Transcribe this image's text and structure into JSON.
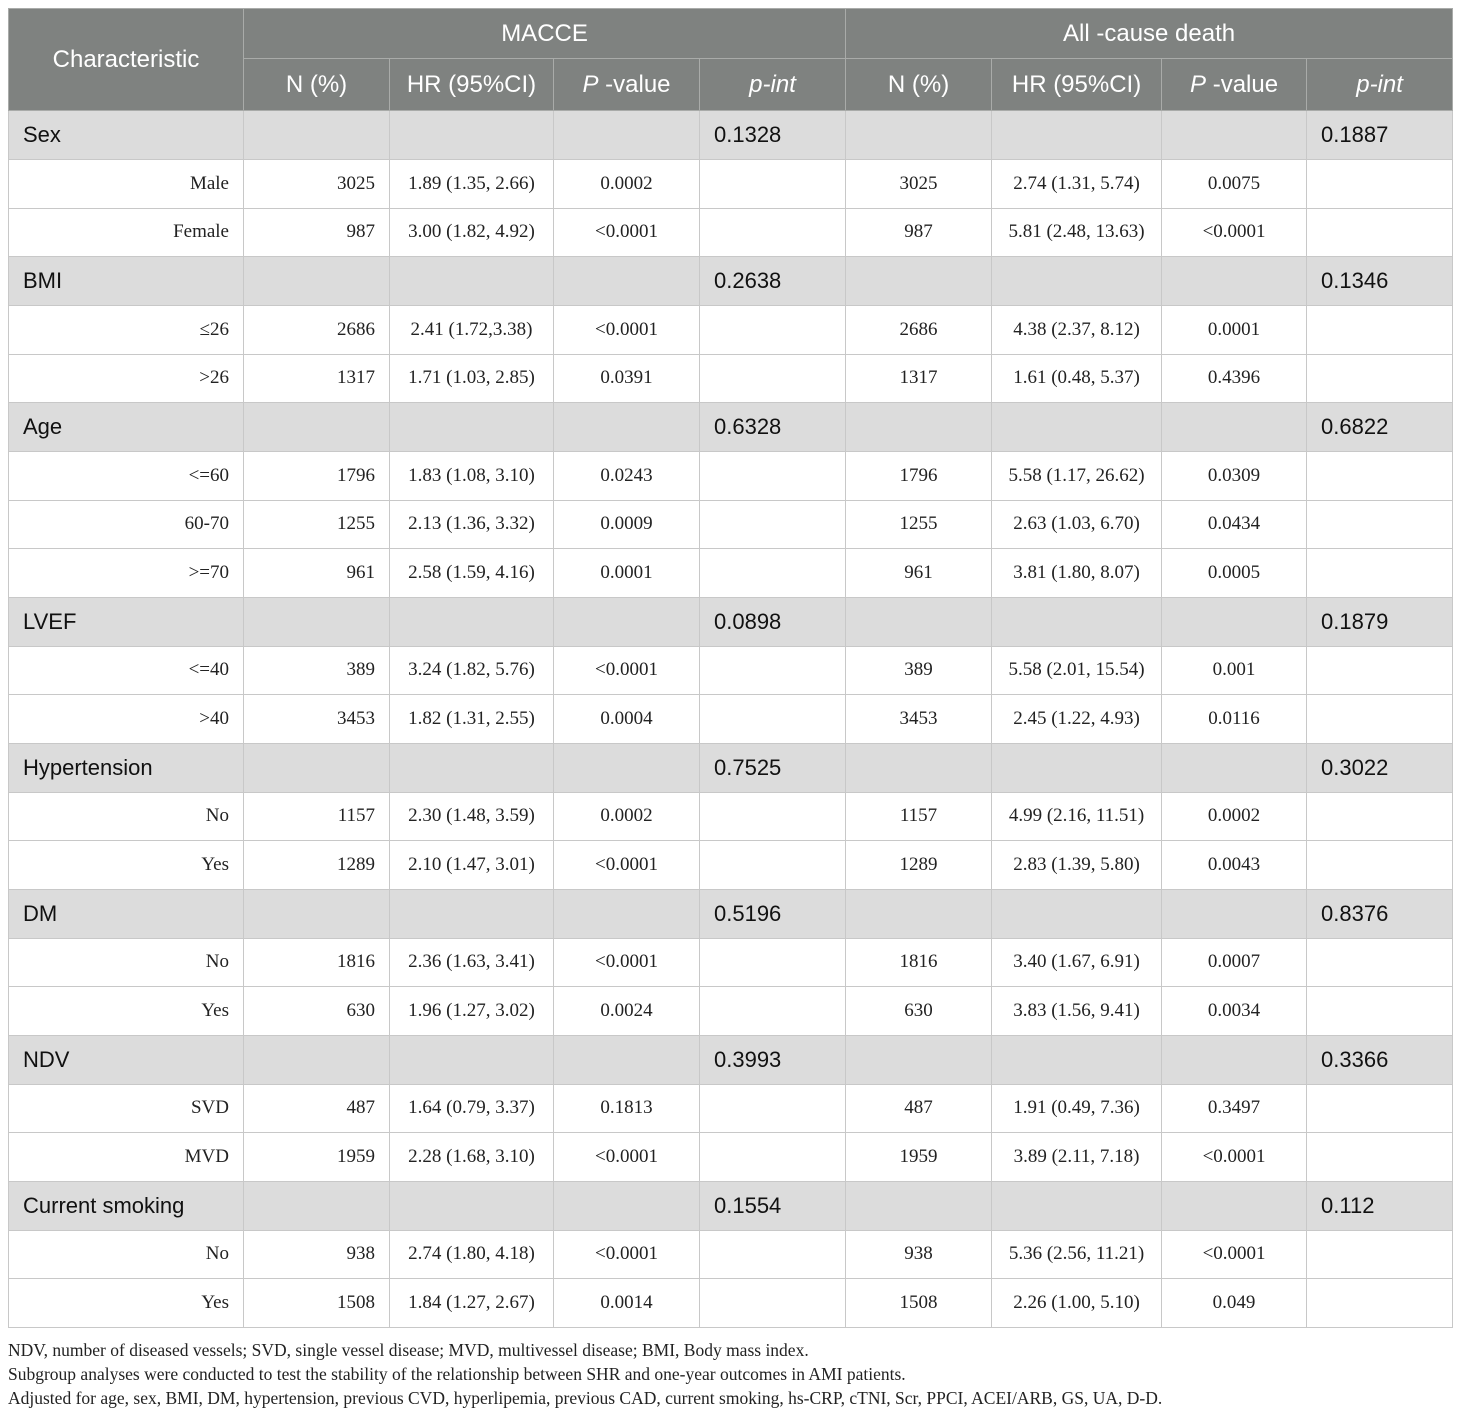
{
  "table": {
    "header": {
      "characteristic": "Characteristic",
      "group_macce": "MACCE",
      "group_death": "All -cause death",
      "n": "N (%)",
      "hr": "HR (95%CI)",
      "p_prefix": "P",
      "p_suffix": " -value",
      "pint": "p-int"
    },
    "groups": [
      {
        "label": "Sex",
        "pint_macce": "0.1328",
        "pint_death": "0.1887",
        "rows": [
          {
            "label": "Male",
            "macce": {
              "n": "3025",
              "hr": "1.89 (1.35, 2.66)",
              "p": "0.0002"
            },
            "death": {
              "n": "3025",
              "hr": "2.74 (1.31, 5.74)",
              "p": "0.0075"
            }
          },
          {
            "label": "Female",
            "macce": {
              "n": "987",
              "hr": "3.00 (1.82, 4.92)",
              "p": "<0.0001"
            },
            "death": {
              "n": "987",
              "hr": "5.81 (2.48, 13.63)",
              "p": "<0.0001"
            }
          }
        ]
      },
      {
        "label": "BMI",
        "pint_macce": "0.2638",
        "pint_death": "0.1346",
        "rows": [
          {
            "label": "≤26",
            "macce": {
              "n": "2686",
              "hr": "2.41 (1.72,3.38)",
              "p": "<0.0001"
            },
            "death": {
              "n": "2686",
              "hr": "4.38 (2.37, 8.12)",
              "p": "0.0001"
            }
          },
          {
            "label": ">26",
            "macce": {
              "n": "1317",
              "hr": "1.71 (1.03, 2.85)",
              "p": "0.0391"
            },
            "death": {
              "n": "1317",
              "hr": "1.61 (0.48, 5.37)",
              "p": "0.4396"
            }
          }
        ]
      },
      {
        "label": "Age",
        "pint_macce": "0.6328",
        "pint_death": "0.6822",
        "rows": [
          {
            "label": "<=60",
            "macce": {
              "n": "1796",
              "hr": "1.83 (1.08, 3.10)",
              "p": "0.0243"
            },
            "death": {
              "n": "1796",
              "hr": "5.58 (1.17, 26.62)",
              "p": "0.0309"
            }
          },
          {
            "label": "60-70",
            "macce": {
              "n": "1255",
              "hr": "2.13 (1.36, 3.32)",
              "p": "0.0009"
            },
            "death": {
              "n": "1255",
              "hr": "2.63 (1.03, 6.70)",
              "p": "0.0434"
            }
          },
          {
            "label": ">=70",
            "macce": {
              "n": "961",
              "hr": "2.58 (1.59, 4.16)",
              "p": "0.0001"
            },
            "death": {
              "n": "961",
              "hr": "3.81 (1.80, 8.07)",
              "p": "0.0005"
            }
          }
        ]
      },
      {
        "label": "LVEF",
        "pint_macce": "0.0898",
        "pint_death": "0.1879",
        "rows": [
          {
            "label": "<=40",
            "macce": {
              "n": "389",
              "hr": "3.24 (1.82, 5.76)",
              "p": "<0.0001"
            },
            "death": {
              "n": "389",
              "hr": "5.58 (2.01, 15.54)",
              "p": "0.001"
            }
          },
          {
            "label": ">40",
            "macce": {
              "n": "3453",
              "hr": "1.82 (1.31, 2.55)",
              "p": "0.0004"
            },
            "death": {
              "n": "3453",
              "hr": "2.45 (1.22, 4.93)",
              "p": "0.0116"
            }
          }
        ]
      },
      {
        "label": "Hypertension",
        "pint_macce": "0.7525",
        "pint_death": "0.3022",
        "rows": [
          {
            "label": "No",
            "macce": {
              "n": "1157",
              "hr": "2.30 (1.48, 3.59)",
              "p": "0.0002"
            },
            "death": {
              "n": "1157",
              "hr": "4.99 (2.16, 11.51)",
              "p": "0.0002"
            }
          },
          {
            "label": "Yes",
            "macce": {
              "n": "1289",
              "hr": "2.10 (1.47, 3.01)",
              "p": "<0.0001"
            },
            "death": {
              "n": "1289",
              "hr": "2.83 (1.39, 5.80)",
              "p": "0.0043"
            }
          }
        ]
      },
      {
        "label": "DM",
        "pint_macce": "0.5196",
        "pint_death": "0.8376",
        "rows": [
          {
            "label": "No",
            "macce": {
              "n": "1816",
              "hr": "2.36 (1.63, 3.41)",
              "p": "<0.0001"
            },
            "death": {
              "n": "1816",
              "hr": "3.40 (1.67, 6.91)",
              "p": "0.0007"
            }
          },
          {
            "label": "Yes",
            "macce": {
              "n": "630",
              "hr": "1.96 (1.27, 3.02)",
              "p": "0.0024"
            },
            "death": {
              "n": "630",
              "hr": "3.83 (1.56, 9.41)",
              "p": "0.0034"
            }
          }
        ]
      },
      {
        "label": "NDV",
        "pint_macce": "0.3993",
        "pint_death": "0.3366",
        "rows": [
          {
            "label": "SVD",
            "macce": {
              "n": "487",
              "hr": "1.64 (0.79, 3.37)",
              "p": "0.1813"
            },
            "death": {
              "n": "487",
              "hr": "1.91 (0.49, 7.36)",
              "p": "0.3497"
            }
          },
          {
            "label": "MVD",
            "macce": {
              "n": "1959",
              "hr": "2.28 (1.68, 3.10)",
              "p": "<0.0001"
            },
            "death": {
              "n": "1959",
              "hr": "3.89 (2.11, 7.18)",
              "p": "<0.0001"
            }
          }
        ]
      },
      {
        "label": "Current smoking",
        "pint_macce": "0.1554",
        "pint_death": "0.112",
        "rows": [
          {
            "label": "No",
            "macce": {
              "n": "938",
              "hr": "2.74 (1.80, 4.18)",
              "p": "<0.0001"
            },
            "death": {
              "n": "938",
              "hr": "5.36 (2.56, 11.21)",
              "p": "<0.0001"
            }
          },
          {
            "label": "Yes",
            "macce": {
              "n": "1508",
              "hr": "1.84 (1.27, 2.67)",
              "p": "0.0014"
            },
            "death": {
              "n": "1508",
              "hr": "2.26 (1.00, 5.10)",
              "p": "0.049"
            }
          }
        ]
      }
    ]
  },
  "footnotes": [
    "NDV, number of diseased vessels; SVD, single vessel disease; MVD, multivessel disease; BMI, Body mass index.",
    "Subgroup analyses were conducted to test the stability of the relationship between SHR and one-year outcomes in AMI patients.",
    "Adjusted for age, sex, BMI, DM, hypertension, previous CVD, hyperlipemia, previous CAD, current smoking, hs-CRP, cTNI, Scr, PPCI, ACEI/ARB, GS, UA, D-D."
  ]
}
